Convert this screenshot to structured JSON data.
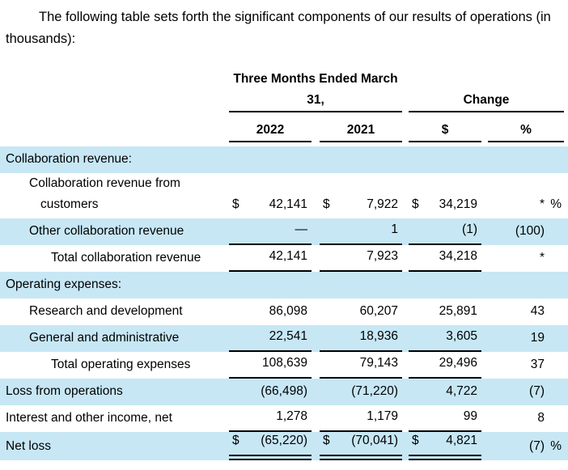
{
  "intro": {
    "text": "The following table sets forth the significant components of our results of operations (in thousands):"
  },
  "colors": {
    "row_highlight": "#C7E7F5",
    "text": "#000000",
    "rule": "#000000"
  },
  "table": {
    "header": {
      "period_line1": "Three Months Ended March",
      "period_line2": "31,",
      "change_label": "Change",
      "columns": [
        "2022",
        "2021",
        "$",
        "%"
      ]
    },
    "rows": [
      {
        "label": "Collaboration revenue:",
        "indent": 0,
        "shaded": true,
        "sym": [
          "",
          "",
          ""
        ],
        "cells": [
          "",
          "",
          "",
          ""
        ],
        "pct_suffix": "",
        "rule": "none"
      },
      {
        "label": "Collaboration revenue from customers",
        "indent": 1,
        "shaded": false,
        "sym": [
          "$",
          "$",
          "$"
        ],
        "cells": [
          "42,141",
          "7,922",
          "34,219",
          "*"
        ],
        "pct_suffix": "%",
        "rule": "none"
      },
      {
        "label": "Other collaboration revenue",
        "indent": 1,
        "shaded": true,
        "sym": [
          "",
          "",
          ""
        ],
        "cells": [
          "—",
          "1",
          "(1)",
          "(100)"
        ],
        "pct_suffix": "",
        "rule": "single"
      },
      {
        "label": "Total collaboration revenue",
        "indent": 2,
        "shaded": false,
        "sym": [
          "",
          "",
          ""
        ],
        "cells": [
          "42,141",
          "7,923",
          "34,218",
          "*"
        ],
        "pct_suffix": "",
        "rule": "single"
      },
      {
        "label": "Operating expenses:",
        "indent": 0,
        "shaded": true,
        "sym": [
          "",
          "",
          ""
        ],
        "cells": [
          "",
          "",
          "",
          ""
        ],
        "pct_suffix": "",
        "rule": "none"
      },
      {
        "label": "Research and development",
        "indent": 1,
        "shaded": false,
        "sym": [
          "",
          "",
          ""
        ],
        "cells": [
          "86,098",
          "60,207",
          "25,891",
          "43"
        ],
        "pct_suffix": "",
        "rule": "none"
      },
      {
        "label": "General and administrative",
        "indent": 1,
        "shaded": true,
        "sym": [
          "",
          "",
          ""
        ],
        "cells": [
          "22,541",
          "18,936",
          "3,605",
          "19"
        ],
        "pct_suffix": "",
        "rule": "single"
      },
      {
        "label": "Total operating expenses",
        "indent": 2,
        "shaded": false,
        "sym": [
          "",
          "",
          ""
        ],
        "cells": [
          "108,639",
          "79,143",
          "29,496",
          "37"
        ],
        "pct_suffix": "",
        "rule": "single"
      },
      {
        "label": "Loss from operations",
        "indent": 0,
        "shaded": true,
        "sym": [
          "",
          "",
          ""
        ],
        "cells": [
          "(66,498)",
          "(71,220)",
          "4,722",
          "(7)"
        ],
        "pct_suffix": "",
        "rule": "none"
      },
      {
        "label": "Interest and other income, net",
        "indent": 0,
        "shaded": false,
        "sym": [
          "",
          "",
          ""
        ],
        "cells": [
          "1,278",
          "1,179",
          "99",
          "8"
        ],
        "pct_suffix": "",
        "rule": "single"
      },
      {
        "label": "Net loss",
        "indent": 0,
        "shaded": true,
        "sym": [
          "$",
          "$",
          "$"
        ],
        "cells": [
          "(65,220)",
          "(70,041)",
          "4,821",
          "(7)"
        ],
        "pct_suffix": "%",
        "rule": "double"
      }
    ]
  }
}
